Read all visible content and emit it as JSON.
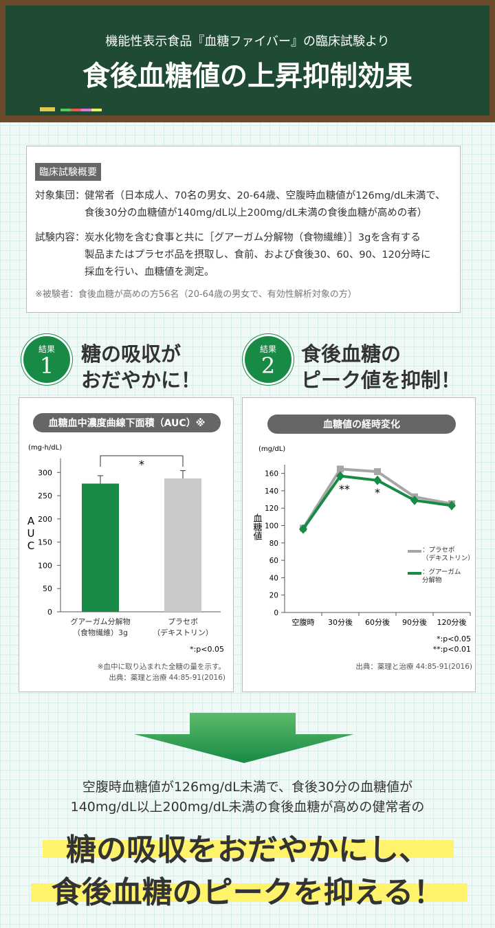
{
  "header": {
    "subtitle": "機能性表示食品『血糖ファイバー』の臨床試験より",
    "title": "食後血糖値の上昇抑制効果"
  },
  "summary": {
    "label": "臨床試験概要",
    "items": [
      {
        "term": "対象集団：",
        "lines": [
          "健常者（日本成人、70名の男女、20-64歳、空腹時血糖値が126mg/dL未満で、",
          "食後30分の血糖値が140mg/dL以上200mg/dL未満の食後血糖が高めの者）"
        ]
      },
      {
        "term": "試験内容：",
        "lines": [
          "炭水化物を含む食事と共に［グアーガム分解物（食物繊維）］3gを含有する",
          "製品またはプラセボ品を摂取し、食前、および食後30、60、90、120分時に",
          "採血を行い、血糖値を測定。"
        ]
      }
    ],
    "note": "※被験者：食後血糖が高めの方56名（20-64歳の男女で、有効性解析対象の方）"
  },
  "results": [
    {
      "badge": "結果",
      "number": "1",
      "lines": [
        "糖の吸収が",
        "おだやかに！"
      ]
    },
    {
      "badge": "結果",
      "number": "2",
      "lines": [
        "食後血糖の",
        "ピーク値を抑制！"
      ]
    }
  ],
  "chart_data": [
    {
      "type": "bar",
      "title": "血糖血中濃度曲線下面積（AUC）※",
      "unit": "(mg-h/dL)",
      "ylabel": "AUC",
      "categories": [
        "グアーガム分解物\n（食物繊維）3g",
        "プラセボ\n（デキストリン）"
      ],
      "values": [
        276,
        287
      ],
      "errors": [
        17,
        17
      ],
      "colors": [
        "#178a45",
        "#c9c9c9"
      ],
      "ylim": [
        0,
        330
      ],
      "yticks": [
        0,
        50,
        100,
        150,
        200,
        250,
        300
      ],
      "annotations": [
        "*"
      ],
      "notes": [
        "*:p<0.05"
      ],
      "footnotes": [
        "※血中に取り込まれた全糖の量を示す。",
        "出典：薬理と治療 44:85-91(2016)"
      ]
    },
    {
      "type": "line",
      "title": "血糖値の経時変化",
      "unit": "(mg/dL)",
      "ylabel": "血糖値",
      "categories": [
        "空腹時",
        "30分後",
        "60分後",
        "90分後",
        "120分後"
      ],
      "series": [
        {
          "name": "：プラセボ\n（デキストリン）",
          "color": "#a6a6a6",
          "values": [
            97,
            165,
            162,
            133,
            125
          ]
        },
        {
          "name": "：グアーガム\n分解物",
          "color": "#178a45",
          "values": [
            96,
            157,
            152,
            129,
            123
          ]
        }
      ],
      "ylim": [
        0,
        170
      ],
      "yticks": [
        0,
        20,
        40,
        60,
        80,
        100,
        120,
        140,
        160
      ],
      "annotations": [
        "**",
        "*"
      ],
      "notes": [
        "*:p<0.05",
        "**:p<0.01"
      ],
      "footnotes": [
        "出典：薬理と治療 44:85-91(2016)"
      ]
    }
  ],
  "conclusion": {
    "lines": [
      "空腹時血糖値が126mg/dL未満で、食後30分の血糖値が",
      "140mg/dL以上200mg/dL未満の食後血糖が高めの健常者の"
    ],
    "headline": [
      "糖の吸収をおだやかにし、",
      "食後血糖のピークを抑える！"
    ]
  }
}
